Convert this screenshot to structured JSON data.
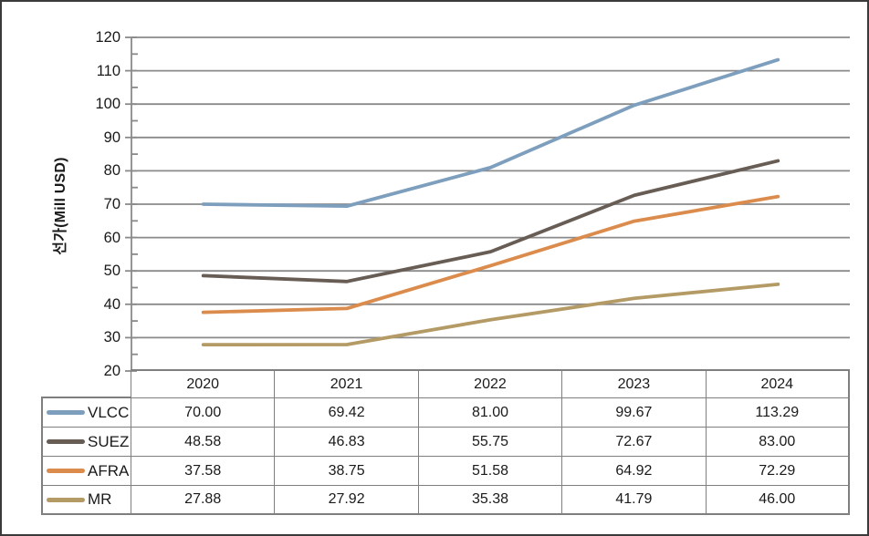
{
  "chart_data": {
    "type": "line",
    "title": "",
    "xlabel": "",
    "ylabel": "선가(Mill USD)",
    "categories": [
      "2020",
      "2021",
      "2022",
      "2023",
      "2024"
    ],
    "series": [
      {
        "name": "VLCC",
        "color": "#7D9FBD",
        "values": [
          70.0,
          69.42,
          81.0,
          99.67,
          113.29
        ],
        "display": [
          "70.00",
          "69.42",
          "81.00",
          "99.67",
          "113.29"
        ]
      },
      {
        "name": "SUEZ",
        "color": "#675D55",
        "values": [
          48.58,
          46.83,
          55.75,
          72.67,
          83.0
        ],
        "display": [
          "48.58",
          "46.83",
          "55.75",
          "72.67",
          "83.00"
        ]
      },
      {
        "name": "AFRA",
        "color": "#DB8C4D",
        "values": [
          37.58,
          38.75,
          51.58,
          64.92,
          72.29
        ],
        "display": [
          "37.58",
          "38.75",
          "51.58",
          "64.92",
          "72.29"
        ]
      },
      {
        "name": "MR",
        "color": "#B49A64",
        "values": [
          27.88,
          27.92,
          35.38,
          41.79,
          46.0
        ],
        "display": [
          "27.88",
          "27.92",
          "35.38",
          "41.79",
          "46.00"
        ]
      }
    ],
    "ylim": [
      20,
      120
    ],
    "yticks": [
      120,
      110,
      100,
      90,
      80,
      70,
      60,
      50,
      40,
      30,
      20
    ],
    "minor_tick_step": 5,
    "grid": "horizontal-major",
    "legend_position": "data-table-left-column",
    "data_table_shown": true
  },
  "colors": {
    "gridline": "#8a8a8a",
    "axis": "#8a8a8a",
    "table_border": "#7f7f7f",
    "text": "#1a1a1a",
    "frame_border": "#3a3a3a",
    "background": "#ffffff"
  }
}
